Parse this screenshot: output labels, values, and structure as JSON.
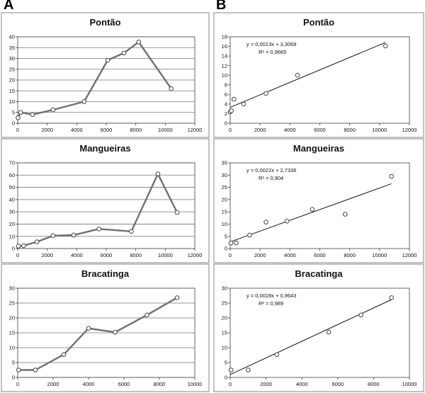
{
  "panel_labels": [
    "A",
    "B"
  ],
  "chart_data": [
    {
      "id": "A1",
      "col": 0,
      "row": 0,
      "type": "line",
      "title": "Pontão",
      "xlim": [
        0,
        12000
      ],
      "xstep": 2000,
      "ylim": [
        0,
        40
      ],
      "ystep": 5,
      "grid": "horizontal",
      "points": [
        [
          20,
          2.5
        ],
        [
          200,
          5
        ],
        [
          1000,
          4
        ],
        [
          2400,
          6.2
        ],
        [
          4500,
          10
        ],
        [
          6100,
          29.2
        ],
        [
          7200,
          32.5
        ],
        [
          8200,
          37.6
        ],
        [
          10400,
          16
        ]
      ]
    },
    {
      "id": "B1",
      "col": 1,
      "row": 0,
      "type": "scatter",
      "title": "Pontão",
      "xlim": [
        0,
        12000
      ],
      "xstep": 2000,
      "ylim": [
        0,
        18
      ],
      "ystep": 2,
      "grid": "none",
      "points": [
        [
          0,
          2.4
        ],
        [
          80,
          2.6
        ],
        [
          250,
          5
        ],
        [
          900,
          4
        ],
        [
          2400,
          6.2
        ],
        [
          4500,
          10
        ],
        [
          10400,
          16.1
        ]
      ],
      "trendline": {
        "slope": 0.0013,
        "intercept": 3.3069,
        "x_range": [
          0,
          10400
        ]
      },
      "equation": "y = 0,0013x + 3,3069",
      "r2": "R² = 0,9665"
    },
    {
      "id": "A2",
      "col": 0,
      "row": 1,
      "type": "line",
      "title": "Mangueiras",
      "xlim": [
        0,
        12000
      ],
      "xstep": 2000,
      "ylim": [
        0,
        70
      ],
      "ystep": 10,
      "grid": "horizontal",
      "points": [
        [
          50,
          2
        ],
        [
          400,
          2.3
        ],
        [
          1300,
          5.5
        ],
        [
          2400,
          10.5
        ],
        [
          3800,
          11
        ],
        [
          5500,
          16
        ],
        [
          7700,
          14
        ],
        [
          9500,
          61
        ],
        [
          10800,
          29.5
        ]
      ]
    },
    {
      "id": "B2",
      "col": 1,
      "row": 1,
      "type": "scatter",
      "title": "Mangueiras",
      "xlim": [
        0,
        12000
      ],
      "xstep": 2000,
      "ylim": [
        0,
        35
      ],
      "ystep": 5,
      "grid": "none",
      "points": [
        [
          50,
          2.3
        ],
        [
          400,
          2.3
        ],
        [
          1300,
          5.5
        ],
        [
          2400,
          10.8
        ],
        [
          3800,
          11.2
        ],
        [
          5500,
          16
        ],
        [
          7700,
          14
        ],
        [
          10800,
          29.5
        ]
      ],
      "trendline": {
        "slope": 0.0022,
        "intercept": 2.7336,
        "x_range": [
          0,
          10800
        ]
      },
      "equation": "y = 0,0022x + 2,7336",
      "r2": "R² = 0,904"
    },
    {
      "id": "A3",
      "col": 0,
      "row": 2,
      "type": "line",
      "title": "Bracatinga",
      "xlim": [
        0,
        10000
      ],
      "xstep": 2000,
      "ylim": [
        0,
        30
      ],
      "ystep": 5,
      "grid": "horizontal",
      "points": [
        [
          50,
          2.5
        ],
        [
          1000,
          2.5
        ],
        [
          2600,
          7.7
        ],
        [
          4000,
          16.5
        ],
        [
          5500,
          15.2
        ],
        [
          7300,
          21
        ],
        [
          9000,
          26.8
        ]
      ]
    },
    {
      "id": "B3",
      "col": 1,
      "row": 2,
      "type": "scatter",
      "title": "Bracatinga",
      "xlim": [
        0,
        10000
      ],
      "xstep": 2000,
      "ylim": [
        0,
        30
      ],
      "ystep": 5,
      "grid": "none",
      "points": [
        [
          50,
          2.5
        ],
        [
          1000,
          2.5
        ],
        [
          2600,
          7.7
        ],
        [
          5500,
          15.2
        ],
        [
          7300,
          21
        ],
        [
          9000,
          26.8
        ]
      ],
      "trendline": {
        "slope": 0.0028,
        "intercept": 0.9643,
        "x_range": [
          0,
          9000
        ]
      },
      "equation": "y = 0,0028x + 0,9643",
      "r2": "R² = 0,989"
    }
  ]
}
